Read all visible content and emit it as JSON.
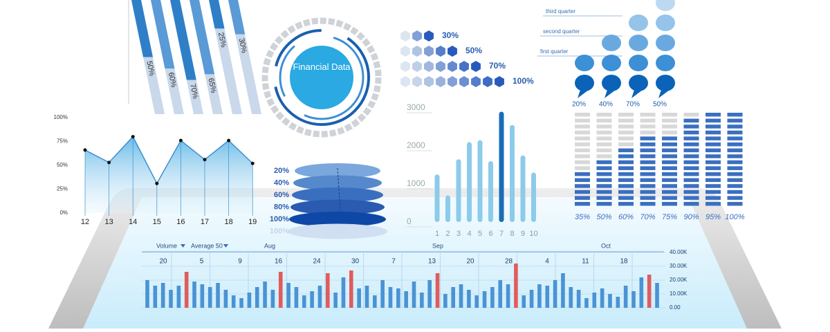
{
  "slanted_bars": {
    "values": [
      50,
      60,
      70,
      65,
      25,
      30
    ],
    "value_labels": [
      "50%",
      "60%",
      "70%",
      "65%",
      "25%",
      "30%"
    ]
  },
  "circle": {
    "title": "Financial Data"
  },
  "hex_rows": {
    "values": [
      30,
      50,
      70,
      100
    ],
    "value_labels": [
      "30%",
      "50%",
      "70%",
      "100%"
    ]
  },
  "bubbles": {
    "rows": [
      "third quarter",
      "second quarter",
      "first quarter"
    ],
    "values": [
      20,
      40,
      70,
      50
    ],
    "value_labels": [
      "20%",
      "40%",
      "70%",
      "50%"
    ]
  },
  "line_chart": {
    "type": "line",
    "categories": [
      "12",
      "13",
      "14",
      "15",
      "16",
      "17",
      "18",
      "19"
    ],
    "values": [
      66,
      53,
      80,
      31,
      76,
      56,
      76,
      52
    ],
    "color": "#3a8fd0",
    "ylim": [
      0,
      100
    ],
    "yticks": [
      {
        "value": 0,
        "label": "0%"
      },
      {
        "value": 25,
        "label": "25%"
      },
      {
        "value": 50,
        "label": "50%"
      },
      {
        "value": 75,
        "label": "75%"
      },
      {
        "value": 100,
        "label": "100%"
      }
    ]
  },
  "discs": {
    "labels": [
      "20%",
      "40%",
      "60%",
      "80%",
      "100%",
      "100%"
    ]
  },
  "bar_chart": {
    "type": "bar",
    "categories": [
      "1",
      "2",
      "3",
      "4",
      "5",
      "6",
      "7",
      "8",
      "9",
      "10"
    ],
    "values": [
      1250,
      700,
      1650,
      2100,
      2150,
      1600,
      2900,
      2550,
      1750,
      1300
    ],
    "color": "#8ccbea",
    "highlight_color": "#1a6db8",
    "ylim": [
      0,
      3000
    ],
    "yticks": [
      0,
      1000,
      2000,
      3000
    ]
  },
  "progress": {
    "type": "bar",
    "values": [
      35,
      50,
      60,
      70,
      75,
      90,
      95,
      100
    ],
    "value_labels": [
      "35%",
      "50%",
      "60%",
      "70%",
      "75%",
      "90%",
      "95%",
      "100%"
    ],
    "color": "#3b6fc0"
  },
  "volume_chart": {
    "type": "bar",
    "controls": [
      "Volume",
      "Average 50"
    ],
    "months": [
      "Aug",
      "Sep",
      "Oct"
    ],
    "days": [
      "20",
      "5",
      "9",
      "16",
      "24",
      "30",
      "7",
      "13",
      "20",
      "28",
      "4",
      "11",
      "18"
    ],
    "series": [
      {
        "name": "Volume",
        "color": "#4a93d4",
        "values": [
          20000,
          16000,
          18000,
          13000,
          16000,
          26000,
          19000,
          17000,
          15000,
          18000,
          13000,
          9000,
          7000,
          11000,
          15000,
          19000,
          13000,
          26000,
          18000,
          15000,
          9000,
          12000,
          16000,
          25000,
          11000,
          22000,
          27000,
          14000,
          16000,
          9000,
          20000,
          15000,
          14000,
          12000,
          19000,
          11000,
          20000,
          25000,
          10000,
          15000,
          17000,
          13000,
          9000,
          12000,
          15000,
          20000,
          17000,
          32000,
          9000,
          13000,
          17000,
          16000,
          20000,
          25000,
          15000,
          13000,
          7000,
          11000,
          14000,
          10000,
          8000,
          16000,
          12000,
          22000,
          24000,
          18000
        ]
      }
    ],
    "highlight_color": "#e05c5c",
    "highlight": [
      5,
      17,
      23,
      26,
      37,
      47,
      64
    ],
    "ylim": [
      0,
      40000
    ],
    "yticks": [
      {
        "value": 0,
        "label": "0.00"
      },
      {
        "value": 10000,
        "label": "10.00K"
      },
      {
        "value": 20000,
        "label": "20.00K"
      },
      {
        "value": 30000,
        "label": "30.00K"
      },
      {
        "value": 40000,
        "label": "40.00K"
      }
    ]
  }
}
